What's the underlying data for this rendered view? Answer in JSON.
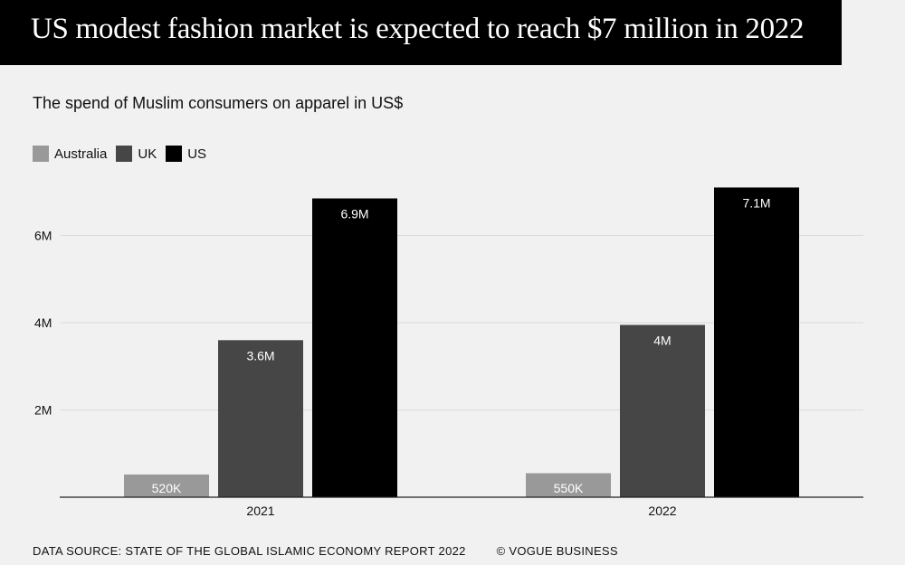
{
  "header": {
    "title": "US modest fashion market is expected to reach $7 million in 2022"
  },
  "chart_data": {
    "type": "bar",
    "title": "US modest fashion market is expected to reach $7 million in 2022",
    "subtitle": "The spend of Muslim consumers on apparel in US$",
    "categories": [
      "2021",
      "2022"
    ],
    "series": [
      {
        "name": "Australia",
        "color": "#999999",
        "values": [
          520000,
          550000
        ],
        "labels": [
          "520K",
          "550K"
        ]
      },
      {
        "name": "UK",
        "color": "#464646",
        "values": [
          3600000,
          3950000
        ],
        "labels": [
          "3.6M",
          "4M"
        ]
      },
      {
        "name": "US",
        "color": "#000000",
        "values": [
          6850000,
          7100000
        ],
        "labels": [
          "6.9M",
          "7.1M"
        ]
      }
    ],
    "yticks": [
      {
        "value": 2000000,
        "label": "2M"
      },
      {
        "value": 4000000,
        "label": "4M"
      },
      {
        "value": 6000000,
        "label": "6M"
      }
    ],
    "ylim": [
      0,
      7600000
    ],
    "grid": true,
    "legend_position": "top-left"
  },
  "footer": {
    "source": "DATA SOURCE: STATE OF THE GLOBAL ISLAMIC ECONOMY REPORT 2022",
    "credit": "© VOGUE BUSINESS"
  }
}
